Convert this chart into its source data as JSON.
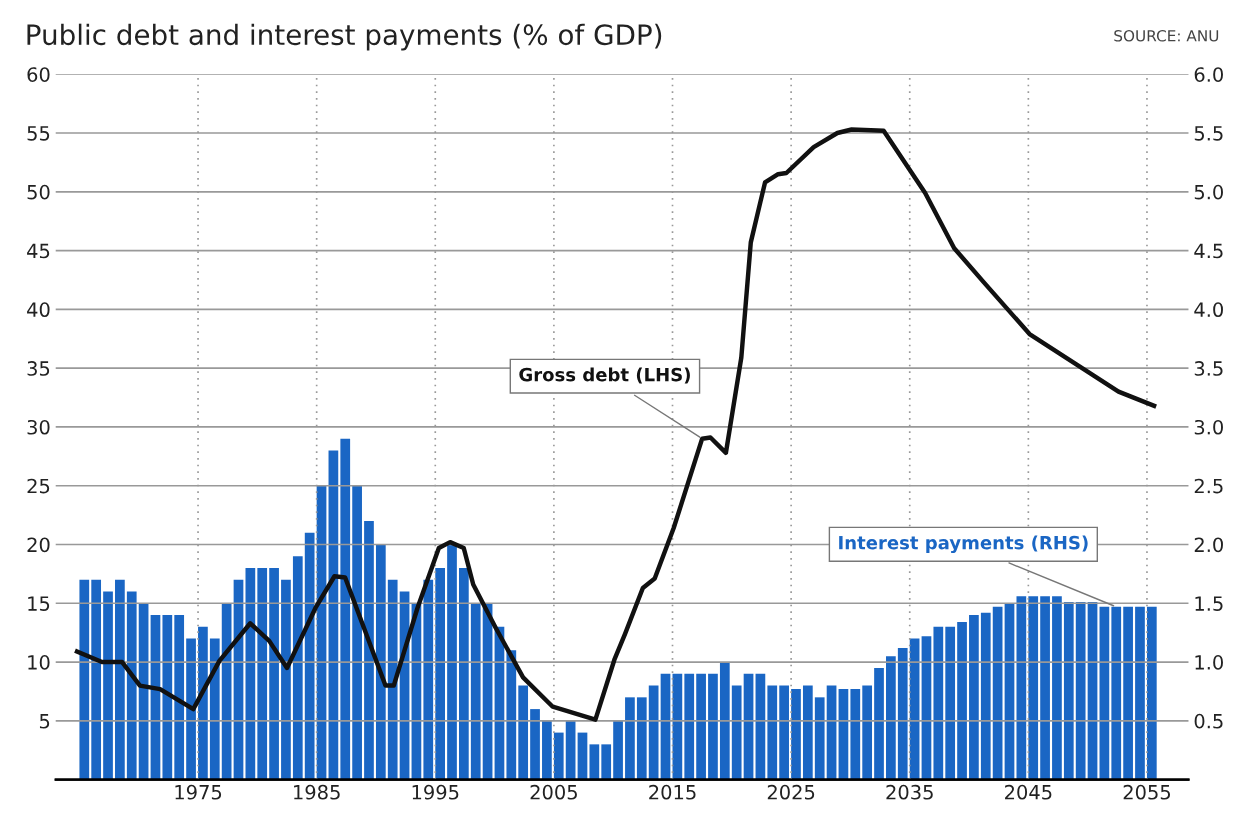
{
  "chart_data": {
    "type": "bar",
    "title": "Public debt and interest payments (% of GDP)",
    "annotations": [
      "SOURCE: ANU"
    ],
    "x": [
      1965,
      1966,
      1967,
      1968,
      1969,
      1970,
      1971,
      1972,
      1973,
      1974,
      1975,
      1976,
      1977,
      1978,
      1979,
      1980,
      1981,
      1982,
      1983,
      1984,
      1985,
      1986,
      1987,
      1988,
      1989,
      1990,
      1991,
      1992,
      1993,
      1994,
      1995,
      1996,
      1997,
      1998,
      1999,
      2000,
      2001,
      2002,
      2003,
      2004,
      2005,
      2006,
      2007,
      2008,
      2009,
      2010,
      2011,
      2012,
      2013,
      2014,
      2015,
      2016,
      2017,
      2018,
      2019,
      2020,
      2021,
      2022,
      2023,
      2024,
      2025,
      2026,
      2027,
      2028,
      2029,
      2030,
      2031,
      2032,
      2033,
      2034,
      2035,
      2036,
      2037,
      2038,
      2039,
      2040,
      2041,
      2042,
      2043,
      2044,
      2045,
      2046,
      2047,
      2048,
      2049,
      2050,
      2051,
      2052,
      2053,
      2054,
      2055
    ],
    "series": [
      {
        "name": "Interest payments (RHS)",
        "axis": "y2",
        "color": "#1a66c4",
        "values": [
          1.7,
          1.7,
          1.6,
          1.7,
          1.6,
          1.5,
          1.4,
          1.4,
          1.4,
          1.2,
          1.3,
          1.2,
          1.5,
          1.7,
          1.8,
          1.8,
          1.8,
          1.7,
          1.9,
          2.1,
          2.5,
          2.8,
          2.9,
          2.5,
          2.2,
          2.0,
          1.7,
          1.6,
          1.5,
          1.7,
          1.8,
          2.0,
          1.8,
          1.5,
          1.5,
          1.3,
          1.1,
          0.8,
          0.6,
          0.5,
          0.4,
          0.5,
          0.4,
          0.3,
          0.3,
          0.5,
          0.7,
          0.7,
          0.8,
          0.9,
          0.9,
          0.9,
          0.9,
          0.9,
          1.0,
          0.8,
          0.9,
          0.9,
          0.8,
          0.8,
          0.77,
          0.8,
          0.7,
          0.8,
          0.77,
          0.77,
          0.8,
          0.95,
          1.05,
          1.12,
          1.2,
          1.22,
          1.3,
          1.3,
          1.34,
          1.4,
          1.42,
          1.47,
          1.5,
          1.56,
          1.56,
          1.56,
          1.56,
          1.51,
          1.51,
          1.51,
          1.47,
          1.47,
          1.47,
          1.47,
          1.47
        ]
      },
      {
        "name": "Gross debt (LHS)",
        "type": "line",
        "color": "#111111",
        "x": [
          1964.8,
          1966.9,
          1968.6,
          1970.1,
          1971.8,
          1974.6,
          1976.8,
          1979.4,
          1981.0,
          1982.5,
          1984.9,
          1986.5,
          1987.4,
          1990.8,
          1991.5,
          1993.5,
          1995.3,
          1996.25,
          1997.4,
          1998.2,
          2000.1,
          2002.4,
          2004.9,
          2008.5,
          2010.1,
          2011.0,
          2012.5,
          2013.5,
          2015.1,
          2017.5,
          2018.2,
          2019.5,
          2020.8,
          2021.6,
          2022.8,
          2023.9,
          2024.6,
          2026.9,
          2028.9,
          2030.1,
          2032.8,
          2036.3,
          2038.75,
          2041.25,
          2045.1,
          2052.6,
          2055.6
        ],
        "values": [
          10.9,
          10.0,
          10.0,
          8.0,
          7.7,
          6.0,
          10.1,
          13.3,
          11.8,
          9.5,
          14.6,
          17.3,
          17.2,
          8.0,
          8.0,
          14.6,
          19.7,
          20.2,
          19.7,
          16.6,
          12.9,
          8.7,
          6.2,
          5.1,
          10.2,
          12.4,
          16.3,
          17.1,
          21.4,
          29.0,
          29.1,
          27.8,
          35.9,
          45.7,
          50.8,
          51.5,
          51.6,
          53.8,
          55.0,
          55.3,
          55.2,
          49.9,
          45.2,
          42.3,
          37.9,
          33.0,
          31.8
        ]
      }
    ],
    "xlim": [
      1963,
      2058.5
    ],
    "xticks": [
      1975,
      1985,
      1995,
      2005,
      2015,
      2025,
      2035,
      2045,
      2055
    ],
    "ylim": [
      0,
      60
    ],
    "yticks": [
      5,
      10,
      15,
      20,
      25,
      30,
      35,
      40,
      45,
      50,
      55,
      60
    ],
    "y2lim": [
      0,
      6.0
    ],
    "y2ticks": [
      {
        "value": 0.5,
        "label": "0.5"
      },
      {
        "value": 1,
        "label": "1.0"
      },
      {
        "value": 1.5,
        "label": "1.5"
      },
      {
        "value": 2,
        "label": "2.0"
      },
      {
        "value": 2.5,
        "label": "2.5"
      },
      {
        "value": 3,
        "label": "3.0"
      },
      {
        "value": 3.5,
        "label": "3.5"
      },
      {
        "value": 4,
        "label": "4.0"
      },
      {
        "value": 4.5,
        "label": "4.5"
      },
      {
        "value": 5,
        "label": "5.0"
      },
      {
        "value": 5.5,
        "label": "5.5"
      },
      {
        "value": 6,
        "label": "6.0"
      }
    ],
    "grid": true,
    "line_style": "solid",
    "marker": "none"
  }
}
